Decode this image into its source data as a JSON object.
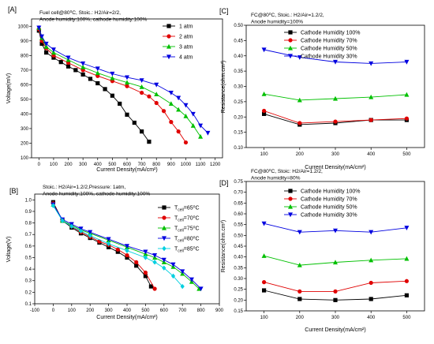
{
  "chart_data": [
    {
      "id": "A",
      "type": "line",
      "panel_label": "[A]",
      "annotation": [
        "Fuel cell@80⁰C, Stoic.: H2/Air=2/2,",
        "Anode humidity:100%, cathode humidity:100%"
      ],
      "xlabel": "Current Density(mA/cm²)",
      "ylabel": "Voltage(mV)",
      "xlim": [
        -50,
        1250
      ],
      "ylim": [
        100,
        1050
      ],
      "xticks": [
        0,
        100,
        200,
        300,
        400,
        500,
        600,
        700,
        800,
        900,
        1000,
        1100,
        1200
      ],
      "yticks": [
        100,
        200,
        300,
        400,
        500,
        600,
        700,
        800,
        900,
        1000
      ],
      "legend_position": "top-right",
      "series": [
        {
          "name": "1 atm",
          "color": "#000000",
          "marker": "square",
          "x": [
            0,
            20,
            50,
            100,
            150,
            200,
            250,
            300,
            350,
            400,
            450,
            500,
            550,
            600,
            650,
            700,
            750
          ],
          "y": [
            970,
            880,
            820,
            785,
            755,
            725,
            700,
            670,
            640,
            610,
            570,
            525,
            470,
            395,
            340,
            280,
            210
          ]
        },
        {
          "name": "2 atm",
          "color": "#e00000",
          "marker": "circle",
          "x": [
            0,
            20,
            50,
            100,
            200,
            300,
            400,
            500,
            600,
            700,
            750,
            800,
            850,
            900,
            950,
            1000
          ],
          "y": [
            980,
            900,
            850,
            800,
            750,
            700,
            660,
            625,
            590,
            545,
            520,
            475,
            420,
            345,
            280,
            205
          ]
        },
        {
          "name": "3 atm",
          "color": "#00c000",
          "marker": "triangle",
          "x": [
            0,
            20,
            50,
            100,
            200,
            300,
            400,
            500,
            600,
            700,
            800,
            900,
            950,
            1000,
            1050,
            1100
          ],
          "y": [
            990,
            920,
            860,
            820,
            770,
            720,
            680,
            645,
            615,
            585,
            535,
            470,
            430,
            385,
            320,
            245
          ]
        },
        {
          "name": "4 atm",
          "color": "#0000e0",
          "marker": "triangle-down",
          "x": [
            0,
            20,
            50,
            100,
            200,
            300,
            400,
            500,
            600,
            700,
            800,
            900,
            950,
            1000,
            1050,
            1100,
            1150
          ],
          "y": [
            990,
            930,
            880,
            840,
            785,
            745,
            710,
            675,
            650,
            630,
            600,
            545,
            510,
            460,
            400,
            320,
            270
          ]
        }
      ]
    },
    {
      "id": "B",
      "type": "line",
      "panel_label": "[B]",
      "annotation": [
        "Stoic.: H2/Air=1.2/2,Pressure: 1atm,",
        "Anode humidity:100%, cathode humidity:100%"
      ],
      "xlabel": "Current Density(mA/cm²)",
      "ylabel": "Voltage(V)",
      "xlim": [
        -100,
        900
      ],
      "ylim": [
        0.1,
        1.05
      ],
      "xticks": [
        -100,
        0,
        100,
        200,
        300,
        400,
        500,
        600,
        700,
        800,
        900
      ],
      "yticks": [
        0.1,
        0.2,
        0.3,
        0.4,
        0.5,
        0.6,
        0.7,
        0.8,
        0.9,
        1.0
      ],
      "legend_position": "top-right",
      "series": [
        {
          "name": "T_cell=65⁰C",
          "name_base": "T",
          "name_sub": "cell",
          "name_rest": "=65⁰C",
          "color": "#000000",
          "marker": "square",
          "x": [
            0,
            50,
            100,
            150,
            200,
            250,
            300,
            350,
            400,
            450,
            500,
            530
          ],
          "y": [
            0.98,
            0.82,
            0.76,
            0.71,
            0.67,
            0.63,
            0.59,
            0.55,
            0.5,
            0.43,
            0.34,
            0.25
          ]
        },
        {
          "name": "T_cell=70⁰C",
          "name_base": "T",
          "name_sub": "cell",
          "name_rest": "=70⁰C",
          "color": "#e00000",
          "marker": "circle",
          "x": [
            0,
            50,
            100,
            150,
            200,
            250,
            300,
            350,
            400,
            450,
            500,
            550
          ],
          "y": [
            0.97,
            0.82,
            0.77,
            0.72,
            0.68,
            0.64,
            0.61,
            0.57,
            0.52,
            0.46,
            0.37,
            0.23
          ]
        },
        {
          "name": "T_cell=75⁰C",
          "name_base": "T",
          "name_sub": "cell",
          "name_rest": "=75⁰C",
          "color": "#00c000",
          "marker": "triangle",
          "x": [
            0,
            50,
            100,
            150,
            200,
            300,
            400,
            500,
            550,
            600,
            650,
            700,
            750,
            790
          ],
          "y": [
            0.96,
            0.82,
            0.78,
            0.74,
            0.71,
            0.65,
            0.59,
            0.53,
            0.5,
            0.46,
            0.42,
            0.36,
            0.29,
            0.23
          ]
        },
        {
          "name": "T_cell=80⁰C",
          "name_base": "T",
          "name_sub": "cell",
          "name_rest": "=80⁰C",
          "color": "#0000e0",
          "marker": "triangle-down",
          "x": [
            0,
            50,
            100,
            150,
            200,
            300,
            400,
            500,
            550,
            600,
            650,
            700,
            750,
            800
          ],
          "y": [
            0.96,
            0.83,
            0.79,
            0.75,
            0.72,
            0.66,
            0.6,
            0.55,
            0.52,
            0.48,
            0.44,
            0.38,
            0.31,
            0.23
          ]
        },
        {
          "name": "T_cell=85⁰C",
          "name_base": "T",
          "name_sub": "cell",
          "name_rest": "=85⁰C",
          "color": "#00d0e0",
          "marker": "diamond",
          "x": [
            0,
            50,
            100,
            150,
            200,
            300,
            400,
            500,
            550,
            600,
            650,
            700
          ],
          "y": [
            0.95,
            0.82,
            0.77,
            0.73,
            0.69,
            0.62,
            0.56,
            0.5,
            0.46,
            0.41,
            0.34,
            0.25
          ]
        }
      ]
    },
    {
      "id": "C",
      "type": "line",
      "panel_label": "[C]",
      "annotation": [
        "FC@80⁰C, Stoic.: H2/Air=1.2/2,",
        "Anode humidity=100%"
      ],
      "xlabel": "Current Density(mA/cm²)",
      "ylabel": "Resistance(ohm.cm²)",
      "xlim": [
        50,
        550
      ],
      "ylim": [
        0.1,
        0.5
      ],
      "xticks": [
        100,
        200,
        300,
        400,
        500
      ],
      "yticks": [
        0.1,
        0.15,
        0.2,
        0.25,
        0.3,
        0.35,
        0.4,
        0.45,
        0.5
      ],
      "legend_position": "top-left",
      "series": [
        {
          "name": "Cathode Humidity 100%",
          "color": "#000000",
          "marker": "square",
          "x": [
            100,
            200,
            300,
            400,
            500
          ],
          "y": [
            0.21,
            0.175,
            0.18,
            0.19,
            0.19
          ]
        },
        {
          "name": "Cathode Humidity 70%",
          "color": "#e00000",
          "marker": "circle",
          "x": [
            100,
            200,
            300,
            400,
            500
          ],
          "y": [
            0.22,
            0.18,
            0.185,
            0.19,
            0.195
          ]
        },
        {
          "name": "Cathode Humidity 50%",
          "color": "#00c000",
          "marker": "triangle",
          "x": [
            100,
            200,
            300,
            400,
            500
          ],
          "y": [
            0.275,
            0.255,
            0.26,
            0.265,
            0.273
          ]
        },
        {
          "name": "Cathode Humidity 30%",
          "color": "#0000e0",
          "marker": "triangle-down",
          "x": [
            100,
            200,
            300,
            400,
            500
          ],
          "y": [
            0.42,
            0.395,
            0.38,
            0.375,
            0.38
          ]
        }
      ]
    },
    {
      "id": "D",
      "type": "line",
      "panel_label": "[D]",
      "annotation": [
        "FC@80⁰C, Stoic: H2/Air=1.2/2,",
        "Anode humidity=80%"
      ],
      "xlabel": "Current Density(mA/cm²)",
      "ylabel": "Resistance(ohm.cm²)",
      "xlim": [
        50,
        550
      ],
      "ylim": [
        0.15,
        0.75
      ],
      "xticks": [
        100,
        200,
        300,
        400,
        500
      ],
      "yticks": [
        0.15,
        0.2,
        0.25,
        0.3,
        0.35,
        0.4,
        0.45,
        0.5,
        0.55,
        0.6,
        0.65,
        0.7,
        0.75
      ],
      "legend_position": "top-left",
      "series": [
        {
          "name": "Cathode Humidity 100%",
          "color": "#000000",
          "marker": "square",
          "x": [
            100,
            200,
            300,
            400,
            500
          ],
          "y": [
            0.245,
            0.205,
            0.2,
            0.205,
            0.222
          ]
        },
        {
          "name": "Cathode Humidity 70%",
          "color": "#e00000",
          "marker": "circle",
          "x": [
            100,
            200,
            300,
            400,
            500
          ],
          "y": [
            0.283,
            0.24,
            0.24,
            0.28,
            0.288
          ]
        },
        {
          "name": "Cathode Humidity 50%",
          "color": "#00c000",
          "marker": "triangle",
          "x": [
            100,
            200,
            300,
            400,
            500
          ],
          "y": [
            0.405,
            0.362,
            0.375,
            0.385,
            0.392
          ]
        },
        {
          "name": "Cathode Humidity 30%",
          "color": "#0000e0",
          "marker": "triangle-down",
          "x": [
            100,
            200,
            300,
            400,
            500
          ],
          "y": [
            0.555,
            0.515,
            0.522,
            0.515,
            0.535
          ]
        }
      ]
    }
  ]
}
